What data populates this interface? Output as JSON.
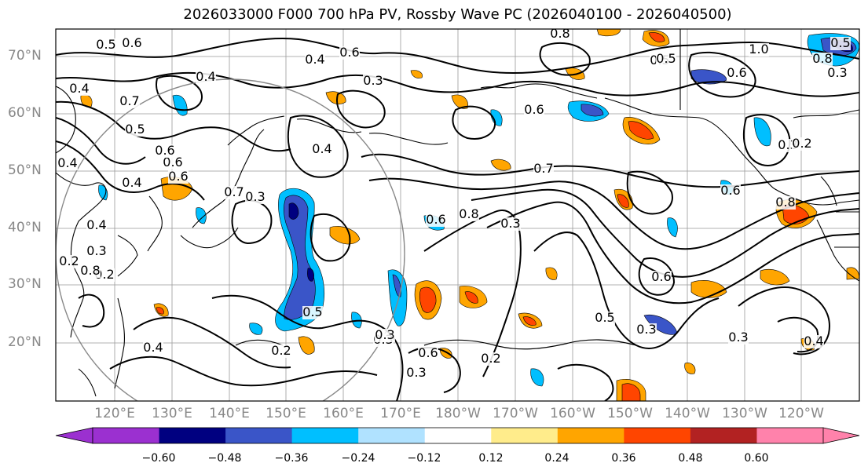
{
  "title": "2026033000 F000 700 hPa PV, Rossby Wave PC (2026040100 - 2026040500)",
  "lat_labels": [
    "70°N",
    "60°N",
    "50°N",
    "40°N",
    "30°N",
    "20°N"
  ],
  "lon_labels": [
    "120°E",
    "130°E",
    "140°E",
    "150°E",
    "160°E",
    "170°E",
    "180°W",
    "170°W",
    "160°W",
    "150°W",
    "140°W",
    "130°W",
    "120°W"
  ],
  "colorbar": {
    "colors": [
      "#9b30d0",
      "#000080",
      "#3a55c8",
      "#00bfff",
      "#b0e2ff",
      "#ffffff",
      "#ffec8b",
      "#ffa500",
      "#ff4500",
      "#b22222",
      "#ff82ab"
    ],
    "labels": [
      "−0.60",
      "−0.48",
      "−0.36",
      "−0.24",
      "−0.12",
      "0.12",
      "0.24",
      "0.36",
      "0.48",
      "0.60"
    ]
  },
  "contour_labels": [
    "0.8",
    "0.6",
    "0.4",
    "0.5",
    "0.6",
    "0.5",
    "0.4",
    "0.6",
    "0.7",
    "0.4",
    "0.5",
    "0.6",
    "0.7",
    "0.3",
    "0.4",
    "0.6",
    "0.7",
    "0.8",
    "0.6",
    "0.3",
    "0.4",
    "0.3",
    "0.5",
    "0.2",
    "0.3",
    "0.2",
    "0.3",
    "0.5",
    "0.3",
    "0.3",
    "0.4",
    "0.6",
    "0.8",
    "1.0",
    "0.5",
    "0.6",
    "0.3",
    "0.2",
    "0.3",
    "0.6",
    "0.8",
    "0.4",
    "0.4",
    "0.3",
    "0.2",
    "0.2",
    "0.4",
    "0.6",
    "0.8",
    "0.6",
    "0.5",
    "0.3"
  ]
}
